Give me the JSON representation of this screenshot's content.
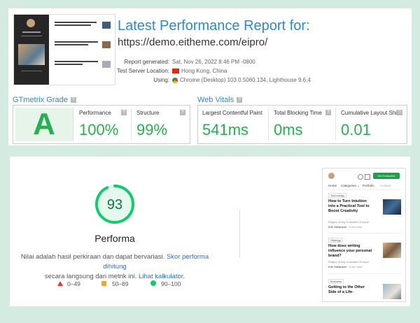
{
  "gtmetrix": {
    "title": "Latest Performance Report for:",
    "url": "https://demo.eitheme.com/eipro/",
    "meta": {
      "generated_label": "Report generated:",
      "generated_value": "Sat, Nov 26, 2022 8:46 PM -0800",
      "location_label": "Test Server Location:",
      "location_value": "Hong Kong, China",
      "using_label": "Using:",
      "using_value": "Chrome (Desktop) 103.0.5060.134, Lighthouse 9.6.4"
    },
    "grade_section_label": "GTmetrix Grade",
    "grade": "A",
    "performance_label": "Performance",
    "performance_value": "100%",
    "structure_label": "Structure",
    "structure_value": "99%",
    "vitals_section_label": "Web Vitals",
    "lcp_label": "Largest Contentful Paint",
    "lcp_value": "541ms",
    "tbt_label": "Total Blocking Time",
    "tbt_value": "0ms",
    "cls_label": "Cumulative Layout Shift",
    "cls_value": "0.01",
    "help_glyph": "?",
    "colors": {
      "accent": "#2b8bc6",
      "good": "#27b04f"
    }
  },
  "lighthouse": {
    "score": "93",
    "score_fraction": 0.93,
    "category": "Performa",
    "desc_part1": "Nilai adalah hasil perkiraan dan dapat bervariasi.",
    "desc_link1": "Skor performa dihitung",
    "desc_part2": "secara langsung dari metrik ini.",
    "desc_link2": "Lihat kalkulator",
    "desc_end": ".",
    "legend_low": "0–49",
    "legend_mid": "50–89",
    "legend_high": "90–100",
    "colors": {
      "pass": "#0cce6b",
      "average": "#f5a623",
      "fail": "#e53935",
      "link": "#1a73e8"
    }
  },
  "preview": {
    "cta": "Get Subscribe",
    "nav": [
      "Home",
      "Categories ⌄",
      "Portfolio",
      "Contact"
    ],
    "articles": [
      {
        "tag": "Technology",
        "title": "How to Turn Intuition into a Practical Tool to Boost Creativity",
        "excerpt": "Ridges of hay in western Europe",
        "author": "Erik Stefanson",
        "read": "5 min read"
      },
      {
        "tag": "Strategy",
        "title": "How does writing influence your personal brand?",
        "excerpt": "Ridges of hay in western Europe",
        "author": "Erik Stefanson",
        "read": "5 min read"
      },
      {
        "tag": "Business",
        "title": "Getting to the Other Side of a Life-"
      }
    ]
  }
}
